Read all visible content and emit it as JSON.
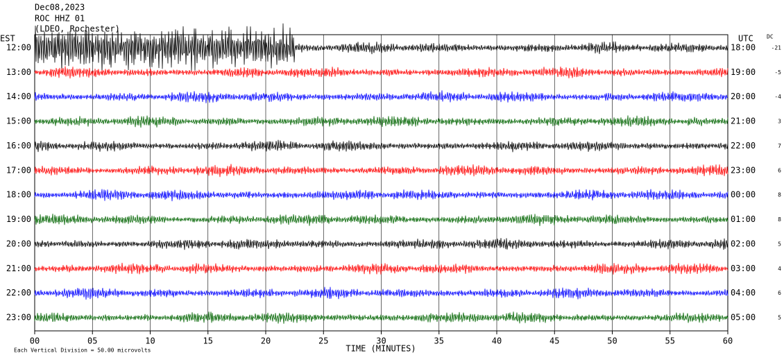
{
  "header": {
    "lines": [
      "Dec08,2023",
      "ROC HHZ 01",
      "(LDEO, Rochester)"
    ]
  },
  "chart_data": {
    "type": "helicorder",
    "left_axis_label": "EST",
    "right_axis_label": "UTC",
    "dc_label": "DC",
    "rows": [
      {
        "est": "12:00",
        "utc": "18:00",
        "dc": -21,
        "color": "#000000"
      },
      {
        "est": "13:00",
        "utc": "19:00",
        "dc": -5,
        "color": "#ff0000"
      },
      {
        "est": "14:00",
        "utc": "20:00",
        "dc": -4,
        "color": "#0000ff"
      },
      {
        "est": "15:00",
        "utc": "21:00",
        "dc": 3,
        "color": "#006400"
      },
      {
        "est": "16:00",
        "utc": "22:00",
        "dc": 7,
        "color": "#000000"
      },
      {
        "est": "17:00",
        "utc": "23:00",
        "dc": 6,
        "color": "#ff0000"
      },
      {
        "est": "18:00",
        "utc": "00:00",
        "dc": 8,
        "color": "#0000ff"
      },
      {
        "est": "19:00",
        "utc": "01:00",
        "dc": 8,
        "color": "#006400"
      },
      {
        "est": "20:00",
        "utc": "02:00",
        "dc": 5,
        "color": "#000000"
      },
      {
        "est": "21:00",
        "utc": "03:00",
        "dc": 4,
        "color": "#ff0000"
      },
      {
        "est": "22:00",
        "utc": "04:00",
        "dc": 6,
        "color": "#0000ff"
      },
      {
        "est": "23:00",
        "utc": "05:00",
        "dc": 5,
        "color": "#006400"
      }
    ],
    "xlim": [
      0,
      60
    ],
    "xticks": [
      {
        "value": 0,
        "label": "00"
      },
      {
        "value": 5,
        "label": "05"
      },
      10,
      15,
      20,
      25,
      30,
      35,
      40,
      45,
      50,
      55,
      60
    ],
    "xlabel": "TIME (MINUTES)",
    "footer": "Each Vertical Division = 50.00 microvolts",
    "grid": true
  }
}
